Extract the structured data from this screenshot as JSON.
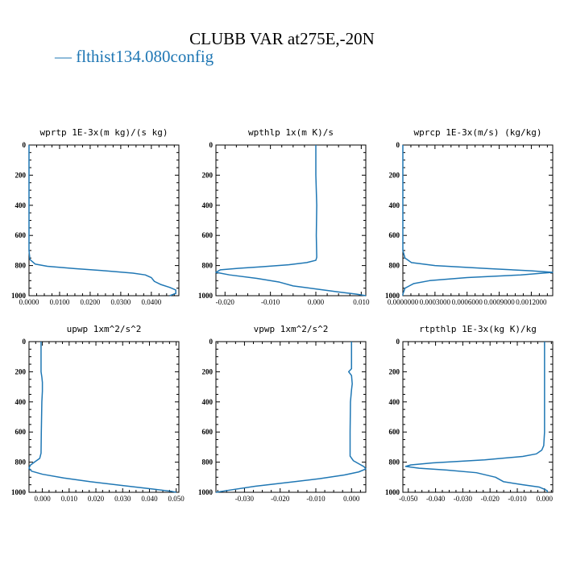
{
  "title": "CLUBB VAR at275E,-20N",
  "legend": {
    "marker": "—",
    "label": "flthist134.080config",
    "color": "#1f77b4"
  },
  "chart_data": [
    {
      "type": "line",
      "title": "wprtp  1E-3x(m kg)/(s kg)",
      "xlim": [
        0,
        0.049
      ],
      "xticks": [
        0,
        0.01,
        0.02,
        0.03,
        0.04
      ],
      "xtick_labels": [
        "0.0000",
        "0.0100",
        "0.0200",
        "0.0300",
        "0.0400"
      ],
      "ylim": [
        1000,
        0
      ],
      "yticks": [
        0,
        200,
        400,
        600,
        800,
        1000
      ],
      "series": [
        {
          "points": [
            [
              0,
              0
            ],
            [
              0,
              700
            ],
            [
              0.0003,
              760
            ],
            [
              0.002,
              790
            ],
            [
              0.006,
              805
            ],
            [
              0.015,
              820
            ],
            [
              0.025,
              835
            ],
            [
              0.034,
              850
            ],
            [
              0.038,
              862
            ],
            [
              0.04,
              880
            ],
            [
              0.041,
              905
            ],
            [
              0.043,
              925
            ],
            [
              0.046,
              945
            ],
            [
              0.048,
              962
            ],
            [
              0.048,
              985
            ],
            [
              0.046,
              1000
            ]
          ]
        }
      ]
    },
    {
      "type": "line",
      "title": "wpthlp  1x(m K)/s",
      "xlim": [
        -0.022,
        0.011
      ],
      "xticks": [
        -0.02,
        -0.01,
        0.0,
        0.01
      ],
      "xtick_labels": [
        "-0.020",
        "-0.010",
        "0.000",
        "0.010"
      ],
      "ylim": [
        1000,
        0
      ],
      "yticks": [
        0,
        200,
        400,
        600,
        800,
        1000
      ],
      "series": [
        {
          "points": [
            [
              0,
              0
            ],
            [
              0,
              200
            ],
            [
              0.0002,
              400
            ],
            [
              0.0001,
              600
            ],
            [
              0.0002,
              745
            ],
            [
              0,
              765
            ],
            [
              -0.002,
              780
            ],
            [
              -0.006,
              795
            ],
            [
              -0.012,
              808
            ],
            [
              -0.017,
              818
            ],
            [
              -0.021,
              828
            ],
            [
              -0.022,
              845
            ],
            [
              -0.019,
              862
            ],
            [
              -0.013,
              885
            ],
            [
              -0.008,
              910
            ],
            [
              -0.005,
              935
            ],
            [
              0,
              955
            ],
            [
              0.005,
              975
            ],
            [
              0.009,
              990
            ],
            [
              0.011,
              1000
            ]
          ]
        }
      ]
    },
    {
      "type": "line",
      "title": "wprcp  1E-3x(m/s) (kg/kg)",
      "xlim": [
        0,
        0.0014
      ],
      "xticks": [
        0,
        0.0003,
        0.0006,
        0.0009,
        0.0012
      ],
      "xtick_labels": [
        "0.0000000",
        "0.0003000",
        "0.0006000",
        "0.0009000",
        "0.0012000"
      ],
      "ylim": [
        1000,
        0
      ],
      "yticks": [
        0,
        200,
        400,
        600,
        800,
        1000
      ],
      "series": [
        {
          "points": [
            [
              0,
              0
            ],
            [
              0,
              700
            ],
            [
              2e-05,
              750
            ],
            [
              8e-05,
              780
            ],
            [
              0.0003,
              800
            ],
            [
              0.0008,
              820
            ],
            [
              0.0012,
              835
            ],
            [
              0.0014,
              845
            ],
            [
              0.0011,
              862
            ],
            [
              0.0006,
              880
            ],
            [
              0.00025,
              900
            ],
            [
              0.0001,
              920
            ],
            [
              2e-05,
              950
            ],
            [
              0,
              990
            ],
            [
              0,
              1000
            ]
          ]
        }
      ]
    },
    {
      "type": "line",
      "title": "upwp  1xm^2/s^2",
      "xlim": [
        -0.005,
        0.051
      ],
      "xticks": [
        0.0,
        0.01,
        0.02,
        0.03,
        0.04,
        0.05
      ],
      "xtick_labels": [
        "0.000",
        "0.010",
        "0.020",
        "0.030",
        "0.040",
        "0.050"
      ],
      "ylim": [
        1000,
        0
      ],
      "yticks": [
        0,
        200,
        400,
        600,
        800,
        1000
      ],
      "series": [
        {
          "points": [
            [
              -0.0005,
              0
            ],
            [
              -0.0005,
              200
            ],
            [
              -0.0002,
              235
            ],
            [
              0,
              270
            ],
            [
              0,
              330
            ],
            [
              -0.0002,
              400
            ],
            [
              -0.0004,
              600
            ],
            [
              -0.0005,
              740
            ],
            [
              -0.001,
              775
            ],
            [
              -0.003,
              800
            ],
            [
              -0.0045,
              820
            ],
            [
              -0.005,
              840
            ],
            [
              -0.004,
              860
            ],
            [
              0,
              880
            ],
            [
              0.008,
              905
            ],
            [
              0.018,
              930
            ],
            [
              0.03,
              955
            ],
            [
              0.041,
              978
            ],
            [
              0.048,
              993
            ],
            [
              0.05,
              1000
            ]
          ]
        }
      ]
    },
    {
      "type": "line",
      "title": "vpwp  1xm^2/s^2",
      "xlim": [
        -0.038,
        0.004
      ],
      "xticks": [
        -0.03,
        -0.02,
        -0.01,
        0.0
      ],
      "xtick_labels": [
        "-0.030",
        "-0.020",
        "-0.010",
        "0.000"
      ],
      "ylim": [
        1000,
        0
      ],
      "yticks": [
        0,
        200,
        400,
        600,
        800,
        1000
      ],
      "series": [
        {
          "points": [
            [
              0,
              0
            ],
            [
              0,
              180
            ],
            [
              -0.0008,
              200
            ],
            [
              0,
              225
            ],
            [
              0.0002,
              280
            ],
            [
              0,
              320
            ],
            [
              -0.0003,
              400
            ],
            [
              -0.0004,
              600
            ],
            [
              -0.0004,
              760
            ],
            [
              0.0005,
              790
            ],
            [
              0.002,
              810
            ],
            [
              0.0035,
              830
            ],
            [
              0.004,
              845
            ],
            [
              0.002,
              865
            ],
            [
              -0.002,
              885
            ],
            [
              -0.009,
              910
            ],
            [
              -0.018,
              935
            ],
            [
              -0.027,
              960
            ],
            [
              -0.034,
              985
            ],
            [
              -0.038,
              1000
            ]
          ]
        }
      ]
    },
    {
      "type": "line",
      "title": "rtpthlp  1E-3x(kg K)/kg",
      "xlim": [
        -0.052,
        0.003
      ],
      "xticks": [
        -0.05,
        -0.04,
        -0.03,
        -0.02,
        -0.01,
        0.0
      ],
      "xtick_labels": [
        "-0.050",
        "-0.040",
        "-0.030",
        "-0.020",
        "-0.010",
        "0.000"
      ],
      "ylim": [
        1000,
        0
      ],
      "yticks": [
        0,
        200,
        400,
        600,
        800,
        1000
      ],
      "series": [
        {
          "points": [
            [
              0,
              0
            ],
            [
              0,
              600
            ],
            [
              -0.0003,
              690
            ],
            [
              -0.001,
              720
            ],
            [
              -0.003,
              745
            ],
            [
              -0.008,
              762
            ],
            [
              -0.022,
              785
            ],
            [
              -0.041,
              805
            ],
            [
              -0.049,
              818
            ],
            [
              -0.051,
              828
            ],
            [
              -0.046,
              840
            ],
            [
              -0.036,
              852
            ],
            [
              -0.025,
              870
            ],
            [
              -0.018,
              900
            ],
            [
              -0.015,
              930
            ],
            [
              -0.008,
              950
            ],
            [
              -0.002,
              965
            ],
            [
              0,
              980
            ],
            [
              0.001,
              990
            ],
            [
              0.001,
              1000
            ]
          ]
        }
      ]
    }
  ]
}
